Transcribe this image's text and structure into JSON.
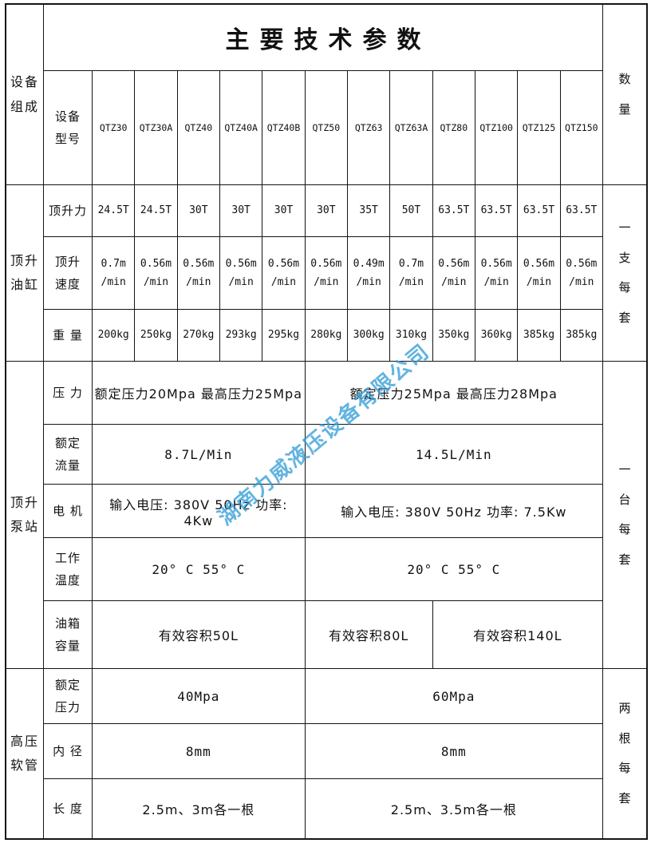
{
  "title": "主要技术参数",
  "watermark": {
    "text": "湖南力威液压设备有限公司",
    "color": "#2E9BD6"
  },
  "left_col": {
    "equipment": "设备\n组成",
    "cylinder": "顶升\n油缸",
    "pump": "顶升\n泵站",
    "hose": "高压\n软管"
  },
  "right_col": {
    "header": "数\n量",
    "cylinder_qty": "一\n支\n每\n套",
    "pump_qty": "一\n台\n每\n套",
    "hose_qty": "两\n根\n每\n套"
  },
  "model_header": {
    "label": "设备\n型号",
    "models": [
      "QTZ30",
      "QTZ30A",
      "QTZ40",
      "QTZ40A",
      "QTZ40B",
      "QTZ50",
      "QTZ63",
      "QTZ63A",
      "QTZ80",
      "QTZ100",
      "QTZ125",
      "QTZ150"
    ]
  },
  "cylinder": {
    "force": {
      "label": "顶升力",
      "values": [
        "24.5T",
        "24.5T",
        "30T",
        "30T",
        "30T",
        "30T",
        "35T",
        "50T",
        "63.5T",
        "63.5T",
        "63.5T",
        "63.5T"
      ]
    },
    "speed": {
      "label": "顶升\n速度",
      "values": [
        "0.7m\n/min",
        "0.56m\n/min",
        "0.56m\n/min",
        "0.56m\n/min",
        "0.56m\n/min",
        "0.56m\n/min",
        "0.49m\n/min",
        "0.7m\n/min",
        "0.56m\n/min",
        "0.56m\n/min",
        "0.56m\n/min",
        "0.56m\n/min"
      ]
    },
    "weight": {
      "label": "重 量",
      "values": [
        "200kg",
        "250kg",
        "270kg",
        "293kg",
        "295kg",
        "280kg",
        "300kg",
        "310kg",
        "350kg",
        "360kg",
        "385kg",
        "385kg"
      ]
    }
  },
  "pump": {
    "pressure": {
      "label": "压 力",
      "left": "额定压力20Mpa  最高压力25Mpa",
      "right": "额定压力25Mpa  最高压力28Mpa"
    },
    "flow": {
      "label": "额定\n流量",
      "left": "8.7L/Min",
      "right": "14.5L/Min"
    },
    "motor": {
      "label": "电 机",
      "left": "输入电压: 380V 50Hz 功率: 4Kw",
      "right": "输入电压: 380V 50Hz 功率: 7.5Kw"
    },
    "temperature": {
      "label": "工作\n温度",
      "left": "20° C 55° C",
      "right": "20° C 55° C"
    },
    "tank": {
      "label": "油箱\n容量",
      "left": "有效容积50L",
      "mid": "有效容积80L",
      "right": "有效容积140L"
    }
  },
  "hose": {
    "pressure": {
      "label": "额定\n压力",
      "left": "40Mpa",
      "right": "60Mpa"
    },
    "diameter": {
      "label": "内 径",
      "left": "8mm",
      "right": "8mm"
    },
    "length": {
      "label": "长 度",
      "left": "2.5m、3m各一根",
      "right": "2.5m、3.5m各一根"
    }
  }
}
